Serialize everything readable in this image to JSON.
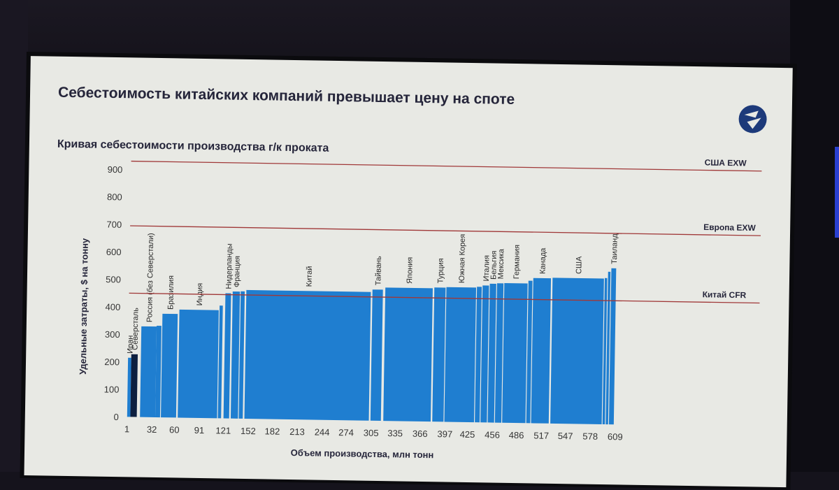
{
  "slide": {
    "title": "Себестоимость китайских компаний превышает цену на споте"
  },
  "chart_data": {
    "type": "bar",
    "subtitle": "Кривая себестоимости производства г/к проката",
    "xlabel": "Объем производства, млн тонн",
    "ylabel": "Удельные затраты, $ на тонну",
    "ylim": [
      0,
      900
    ],
    "xlim": [
      1,
      640
    ],
    "y_ticks": [
      "0",
      "100",
      "200",
      "300",
      "400",
      "500",
      "600",
      "700",
      "800",
      "900"
    ],
    "x_ticks": [
      "1",
      "32",
      "60",
      "91",
      "121",
      "152",
      "182",
      "213",
      "244",
      "274",
      "305",
      "335",
      "366",
      "397",
      "425",
      "456",
      "486",
      "517",
      "547",
      "578",
      "609"
    ],
    "reference_lines": [
      {
        "label": "США EXW",
        "value": 930
      },
      {
        "label": "Европа EXW",
        "value": 695
      },
      {
        "label": "Китай CFR",
        "value": 450
      }
    ],
    "bars": [
      {
        "start": 1,
        "end": 5,
        "value": 215,
        "label": "Иран",
        "highlight": false
      },
      {
        "start": 5,
        "end": 13,
        "value": 228,
        "label": "Северсталь",
        "highlight": true
      },
      {
        "start": 17,
        "end": 36,
        "value": 330,
        "label": "Россия (без Северстали)",
        "highlight": false
      },
      {
        "start": 36,
        "end": 42,
        "value": 333,
        "label": "",
        "highlight": false
      },
      {
        "start": 43,
        "end": 62,
        "value": 377,
        "label": "Бразилия",
        "highlight": false
      },
      {
        "start": 64,
        "end": 113,
        "value": 393,
        "label": "Индия",
        "highlight": false
      },
      {
        "start": 114,
        "end": 118,
        "value": 410,
        "label": "",
        "highlight": false
      },
      {
        "start": 121,
        "end": 128,
        "value": 455,
        "label": "Нидерланды",
        "highlight": false
      },
      {
        "start": 130,
        "end": 139,
        "value": 462,
        "label": "Франция",
        "highlight": false
      },
      {
        "start": 140,
        "end": 145,
        "value": 463,
        "label": "",
        "highlight": false
      },
      {
        "start": 147,
        "end": 302,
        "value": 468,
        "label": "Китай",
        "highlight": false
      },
      {
        "start": 304,
        "end": 317,
        "value": 477,
        "label": "Тайвань",
        "highlight": false
      },
      {
        "start": 320,
        "end": 379,
        "value": 485,
        "label": "Япония",
        "highlight": false
      },
      {
        "start": 381,
        "end": 395,
        "value": 488,
        "label": "Турция",
        "highlight": false
      },
      {
        "start": 396,
        "end": 433,
        "value": 490,
        "label": "Южная Корея",
        "highlight": false
      },
      {
        "start": 434,
        "end": 440,
        "value": 493,
        "label": "",
        "highlight": false
      },
      {
        "start": 441,
        "end": 449,
        "value": 498,
        "label": "Италия",
        "highlight": false
      },
      {
        "start": 450,
        "end": 458,
        "value": 505,
        "label": "Бельгия",
        "highlight": false
      },
      {
        "start": 459,
        "end": 467,
        "value": 507,
        "label": "Мексика",
        "highlight": false
      },
      {
        "start": 468,
        "end": 497,
        "value": 508,
        "label": "Германия",
        "highlight": false
      },
      {
        "start": 498,
        "end": 503,
        "value": 518,
        "label": "",
        "highlight": false
      },
      {
        "start": 504,
        "end": 526,
        "value": 528,
        "label": "Канада",
        "highlight": false
      },
      {
        "start": 528,
        "end": 592,
        "value": 530,
        "label": "США",
        "highlight": false
      },
      {
        "start": 593,
        "end": 596,
        "value": 532,
        "label": "",
        "highlight": false
      },
      {
        "start": 597,
        "end": 600,
        "value": 555,
        "label": "",
        "highlight": false
      },
      {
        "start": 601,
        "end": 607,
        "value": 568,
        "label": "Таиланд",
        "highlight": false
      }
    ],
    "colors": {
      "bar": "#1f7ed0",
      "highlight_bar": "#0d1f3f",
      "reference_line": "#a03838",
      "axis_text": "#333333"
    },
    "grid": false
  }
}
